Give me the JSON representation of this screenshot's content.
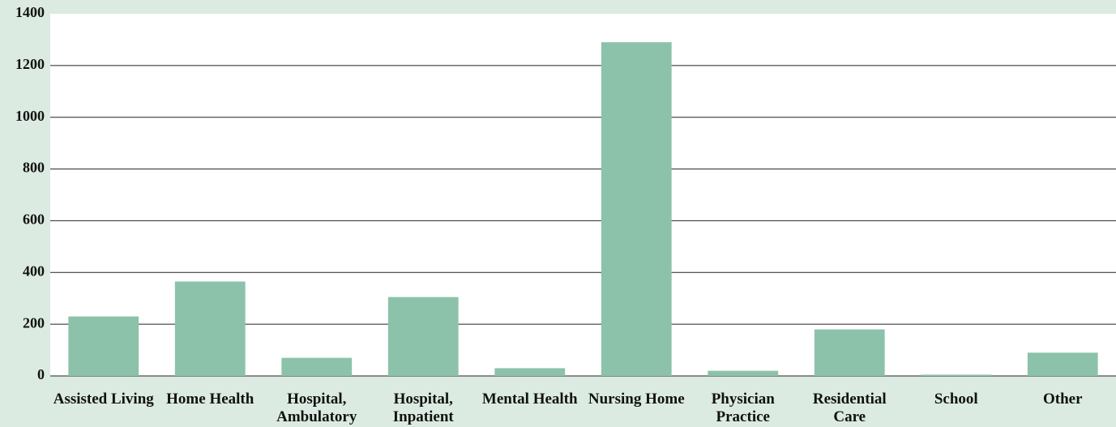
{
  "chart_data": {
    "type": "bar",
    "categories": [
      "Assisted Living",
      "Home Health",
      "Hospital, Ambulatory",
      "Hospital, Inpatient",
      "Mental Health",
      "Nursing Home",
      "Physician Practice",
      "Residential Care",
      "School",
      "Other"
    ],
    "values": [
      230,
      365,
      70,
      305,
      30,
      1290,
      20,
      180,
      5,
      90
    ],
    "color": "#8cc2a9",
    "ylim": [
      0,
      1400
    ],
    "yticks": [
      0,
      200,
      400,
      600,
      800,
      1000,
      1200,
      1400
    ],
    "grid": true
  }
}
